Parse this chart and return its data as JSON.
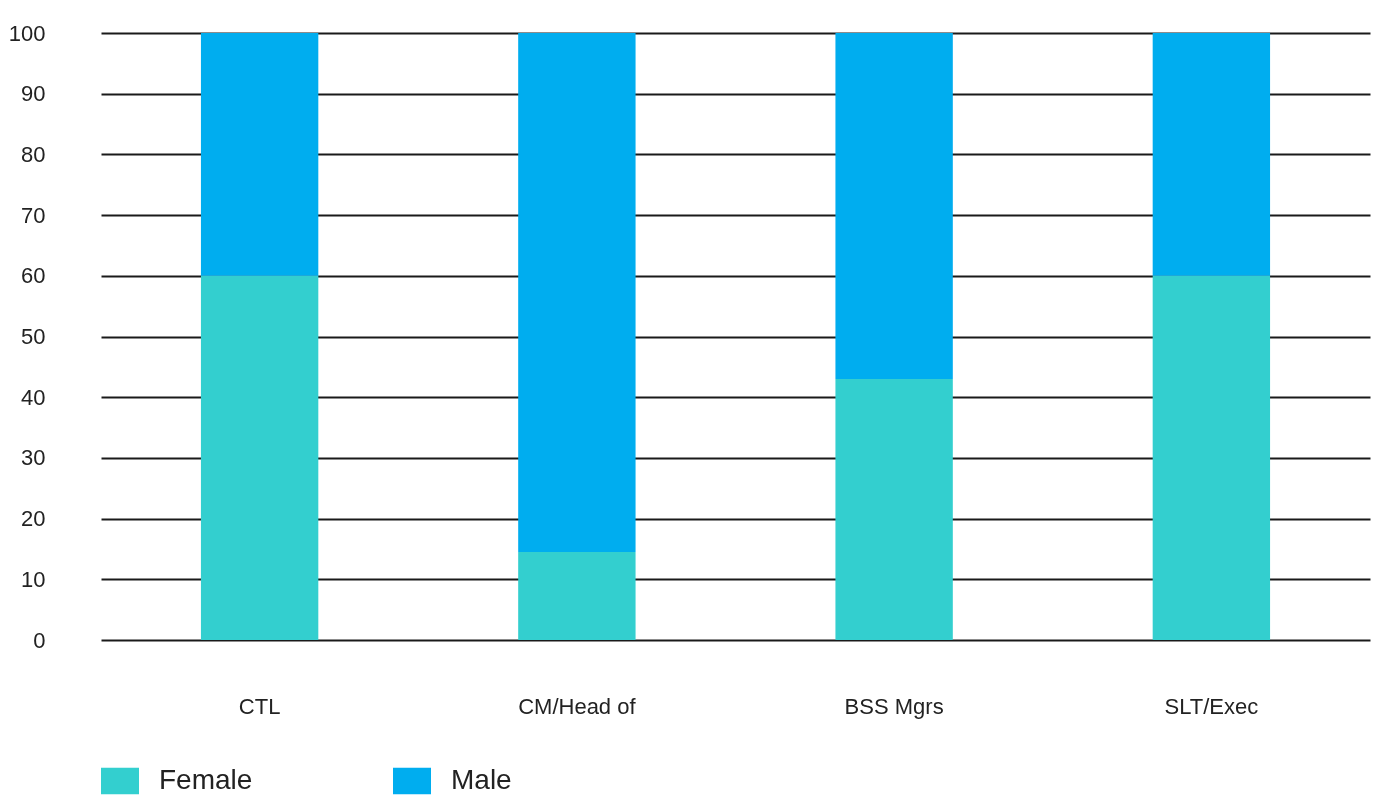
{
  "chart_data": {
    "type": "bar",
    "stacked": true,
    "categories": [
      "CTL",
      "CM/Head of",
      "BSS Mgrs",
      "SLT/Exec"
    ],
    "series": [
      {
        "name": "Female",
        "color": "#33cfcf",
        "values": [
          60,
          14.5,
          43,
          60
        ]
      },
      {
        "name": "Male",
        "color": "#00adef",
        "values": [
          40,
          85.5,
          57,
          40
        ]
      }
    ],
    "ylim": [
      0,
      100
    ],
    "yticks": [
      0,
      10,
      20,
      30,
      40,
      50,
      60,
      70,
      80,
      90,
      100
    ],
    "grid": "y",
    "legend": "bottom"
  }
}
